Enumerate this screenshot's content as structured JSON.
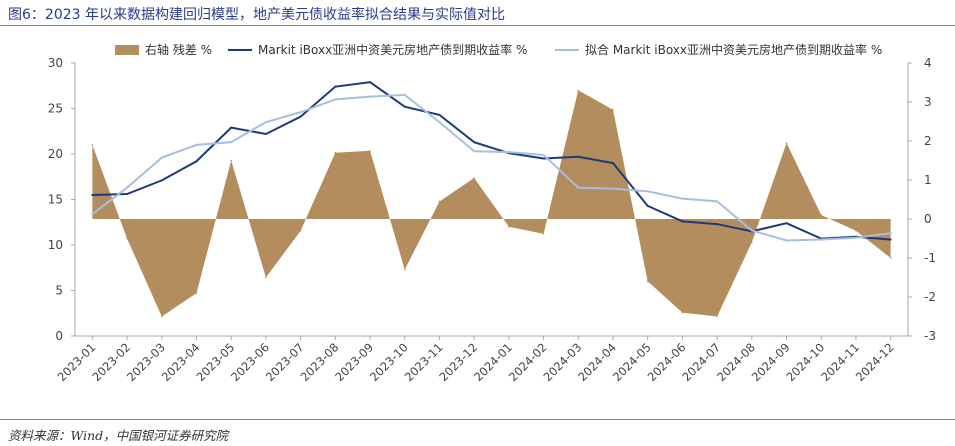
{
  "figure_title": "图6：2023 年以来数据构建回归模型，地产美元债收益率拟合结果与实际值对比",
  "source_note": "资料来源：Wind，中国银河证券研究院",
  "colors": {
    "residual": "#b38d5e",
    "actual": "#1f3a7a",
    "fitted": "#a9bde0",
    "title": "#2b3a8c",
    "rule": "#7a86b8",
    "axis": "#aaaaaa",
    "tick_text": "#444444"
  },
  "chart_data": {
    "type": "area",
    "legend_position": "top",
    "grid": false,
    "x": [
      "2023-01",
      "2023-02",
      "2023-03",
      "2023-04",
      "2023-05",
      "2023-06",
      "2023-07",
      "2023-08",
      "2023-09",
      "2023-10",
      "2023-11",
      "2023-12",
      "2024-01",
      "2024-02",
      "2024-03",
      "2024-04",
      "2024-05",
      "2024-06",
      "2024-07",
      "2024-08",
      "2024-09",
      "2024-10",
      "2024-11",
      "2024-12"
    ],
    "y_left": {
      "range": [
        0,
        30
      ],
      "ticks": [
        "0",
        "5",
        "10",
        "15",
        "20",
        "25",
        "30"
      ]
    },
    "y_right": {
      "range": [
        -3,
        4
      ],
      "ticks": [
        "-3",
        "-2",
        "-1",
        "0",
        "1",
        "2",
        "3",
        "4"
      ]
    },
    "series": [
      {
        "name": "右轴 残差 %",
        "type": "area",
        "axis": "right",
        "values": [
          1.9,
          -0.5,
          -2.5,
          -1.9,
          1.5,
          -1.5,
          -0.3,
          1.7,
          1.75,
          -1.3,
          0.45,
          1.05,
          -0.2,
          -0.38,
          3.3,
          2.8,
          -1.6,
          -2.4,
          -2.5,
          -0.6,
          1.95,
          0.1,
          -0.3,
          -1.0
        ]
      },
      {
        "name": "Markit iBoxx亚洲中资美元房地产债到期收益率 %",
        "type": "line",
        "axis": "left",
        "values": [
          15.5,
          15.6,
          17.1,
          19.2,
          22.9,
          22.2,
          24.1,
          27.4,
          27.9,
          25.2,
          24.3,
          21.3,
          20.1,
          19.5,
          19.7,
          19.0,
          14.3,
          12.6,
          12.3,
          11.5,
          12.4,
          10.7,
          10.9,
          10.6
        ]
      },
      {
        "name": "拟合 Markit iBoxx亚洲中资美元房地产债到期收益率 %",
        "type": "line",
        "axis": "left",
        "values": [
          13.4,
          16.3,
          19.6,
          21.0,
          21.3,
          23.5,
          24.6,
          26.0,
          26.3,
          26.5,
          23.5,
          20.3,
          20.2,
          19.9,
          16.3,
          16.2,
          15.9,
          15.1,
          14.8,
          11.6,
          10.5,
          10.6,
          10.8,
          11.3
        ]
      }
    ]
  }
}
